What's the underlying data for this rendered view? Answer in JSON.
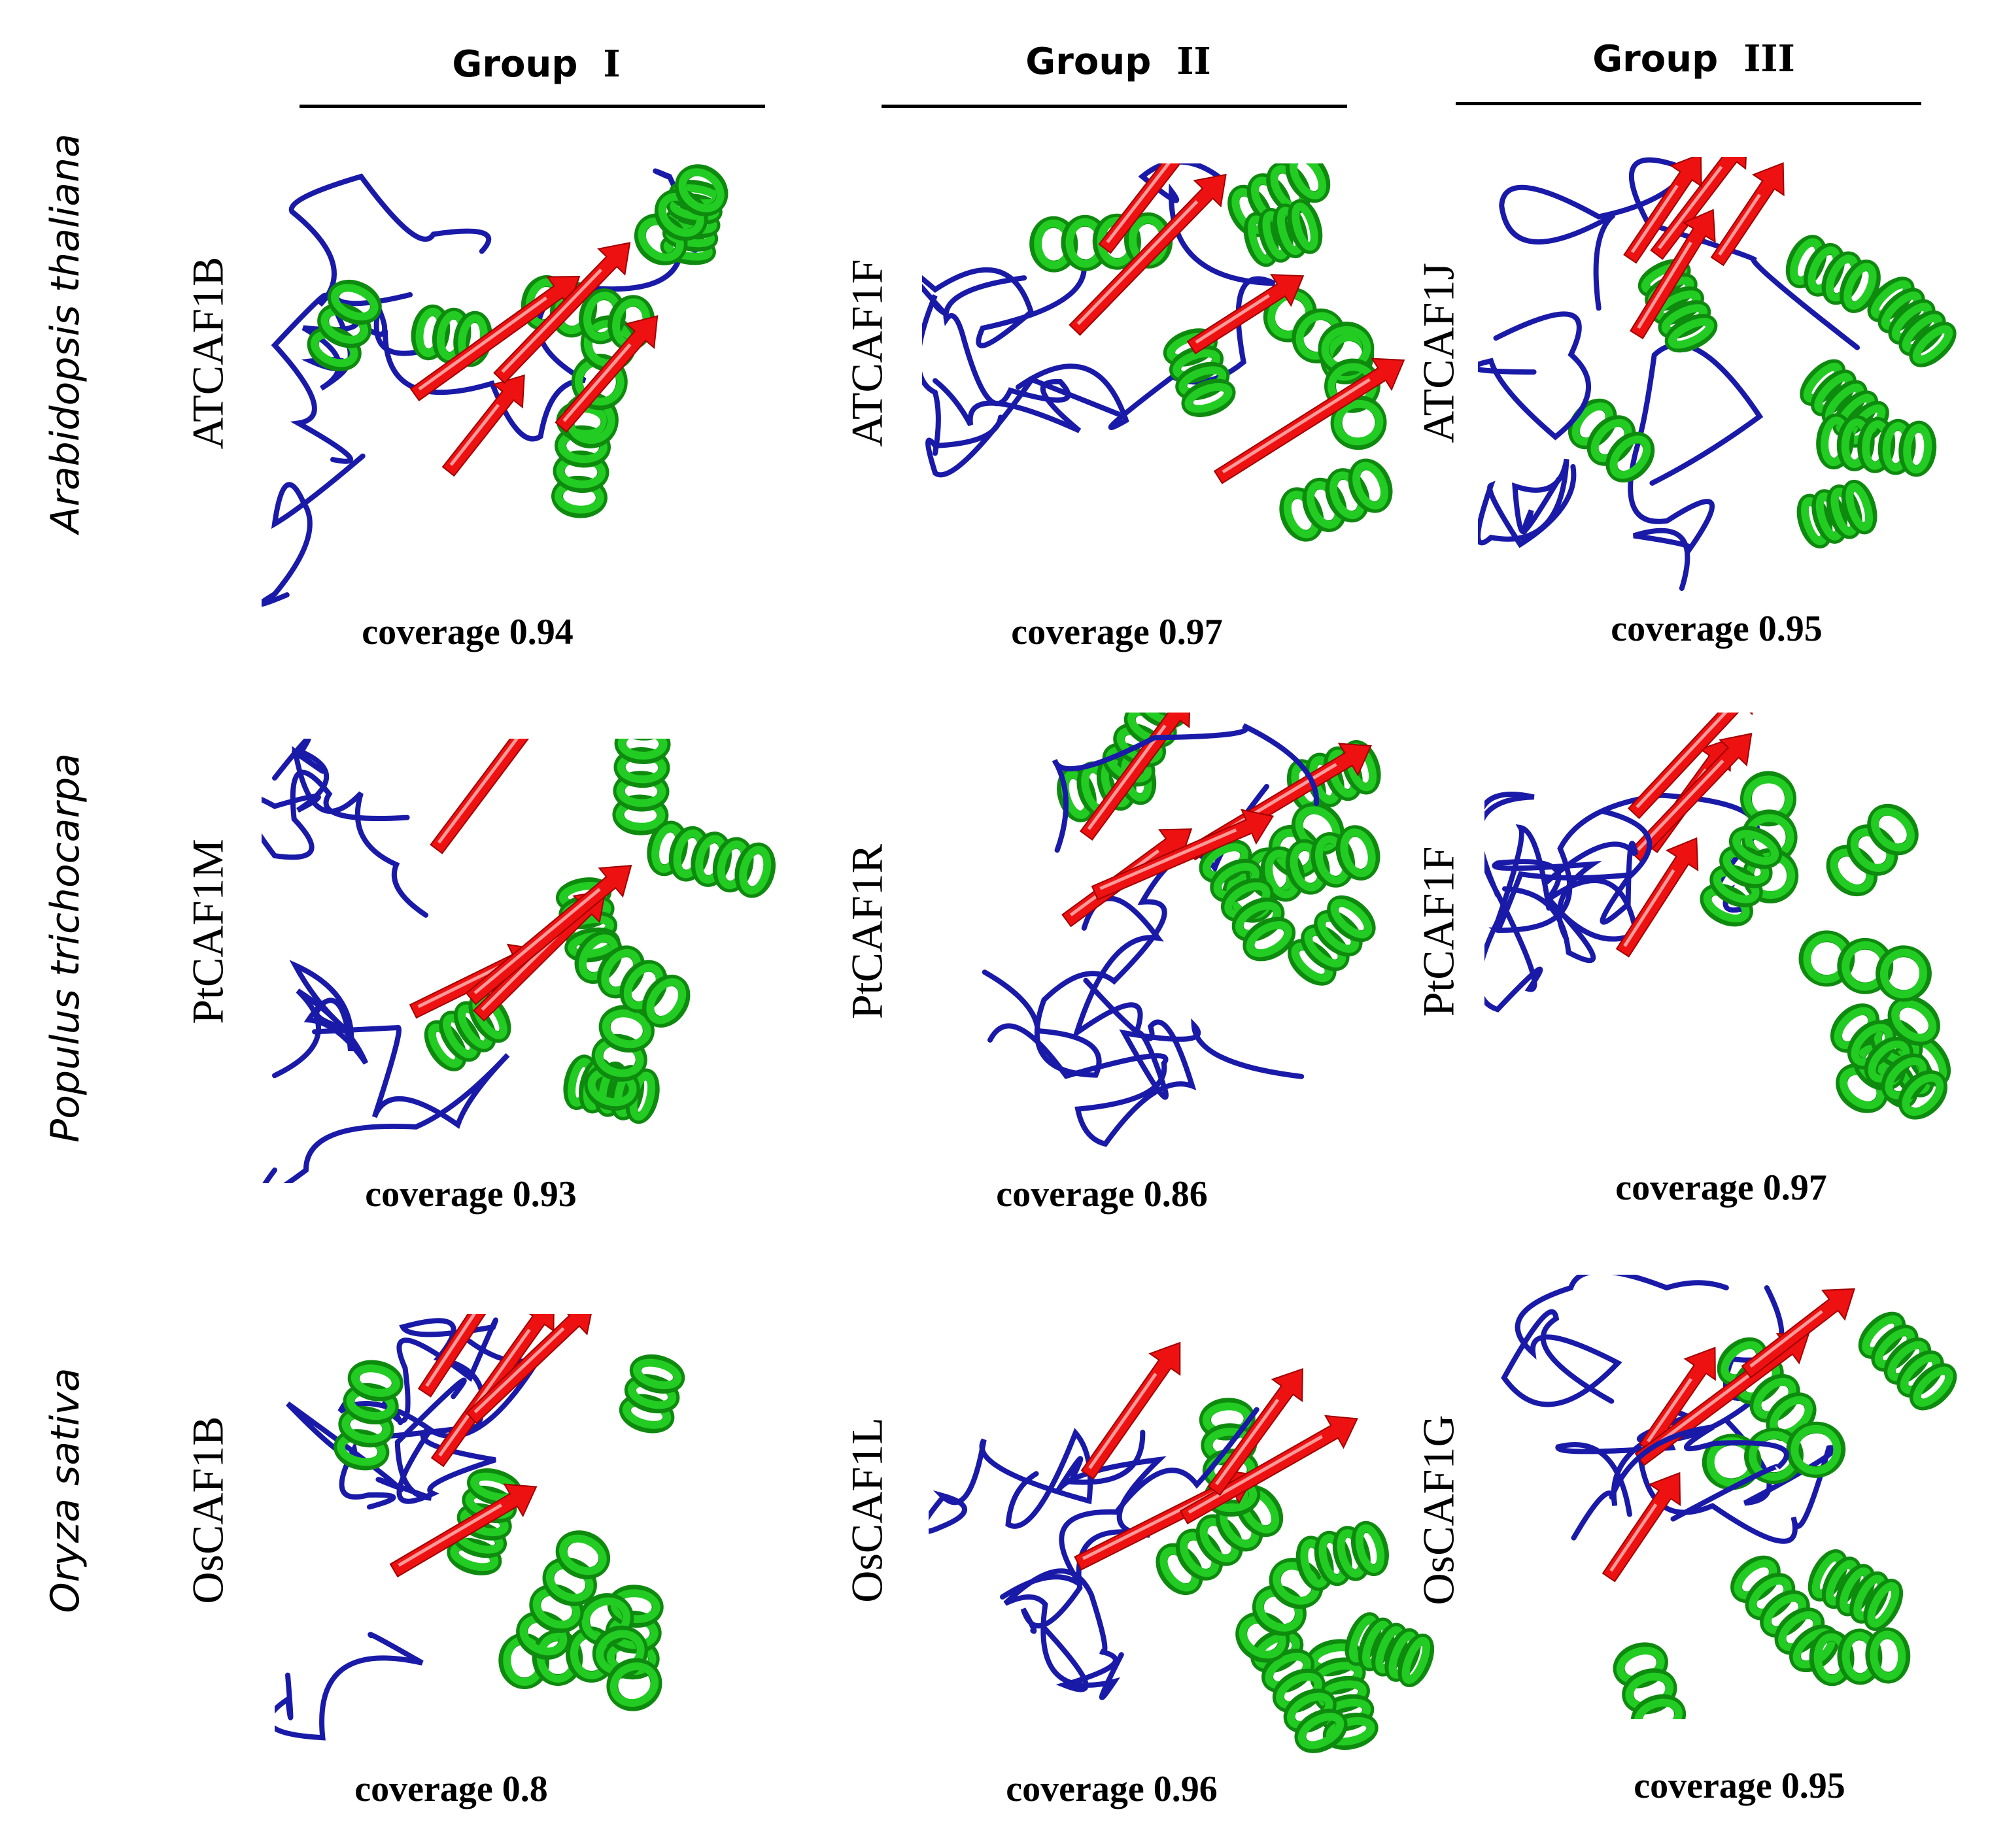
{
  "groups": [
    {
      "label": "Group",
      "numeral": "I"
    },
    {
      "label": "Group",
      "numeral": "II"
    },
    {
      "label": "Group",
      "numeral": "III"
    }
  ],
  "species": [
    "Arabidopsis thaliana",
    "Populus trichocarpa",
    "Oryza sativa"
  ],
  "panels": [
    [
      {
        "protein": "ATCAF1B",
        "coverage": "coverage 0.94"
      },
      {
        "protein": "ATCAF1F",
        "coverage": "coverage 0.97"
      },
      {
        "protein": "ATCAF1J",
        "coverage": "coverage 0.95"
      }
    ],
    [
      {
        "protein": "PtCAF1M",
        "coverage": "coverage 0.93"
      },
      {
        "protein": "PtCAF1R",
        "coverage": "coverage 0.86"
      },
      {
        "protein": "PtCAF1F",
        "coverage": "coverage 0.97"
      }
    ],
    [
      {
        "protein": "OsCAF1B",
        "coverage": "coverage 0.8"
      },
      {
        "protein": "OsCAF1L",
        "coverage": "coverage 0.96"
      },
      {
        "protein": "OsCAF1G",
        "coverage": "coverage 0.95"
      }
    ]
  ],
  "colors": {
    "helix": "#22cc22",
    "helix_dark": "#0e8a0e",
    "strand": "#ee1111",
    "coil": "#1a1aa8"
  }
}
